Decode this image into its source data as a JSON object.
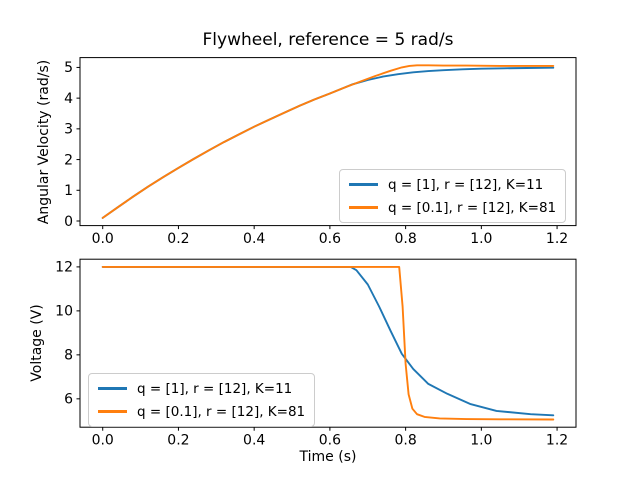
{
  "figure": {
    "background": "#ffffff",
    "text_color": "#000000",
    "axes_color": "#000000",
    "legend_border_color": "#cccccc"
  },
  "chart_data": [
    {
      "type": "line",
      "title": "Flywheel, reference = 5 rad/s",
      "xlabel": "",
      "ylabel": "Angular Velocity (rad/s)",
      "xlim": [
        -0.06,
        1.25
      ],
      "ylim": [
        -0.15,
        5.32
      ],
      "xticks": [
        0.0,
        0.2,
        0.4,
        0.6,
        0.8,
        1.0,
        1.2
      ],
      "xtick_labels": [
        "0.0",
        "0.2",
        "0.4",
        "0.6",
        "0.8",
        "1.0",
        "1.2"
      ],
      "yticks": [
        0,
        1,
        2,
        3,
        4,
        5
      ],
      "ytick_labels": [
        "0",
        "1",
        "2",
        "3",
        "4",
        "5"
      ],
      "grid": false,
      "legend_loc": "lower right",
      "series": [
        {
          "name": "q = [1], r = [12], K=11",
          "color": "#1f77b4",
          "x": [
            0,
            0.04,
            0.08,
            0.12,
            0.16,
            0.2,
            0.24,
            0.28,
            0.32,
            0.36,
            0.4,
            0.44,
            0.48,
            0.52,
            0.56,
            0.6,
            0.64,
            0.66,
            0.7,
            0.74,
            0.78,
            0.82,
            0.86,
            0.9,
            0.95,
            1.0,
            1.06,
            1.12,
            1.19
          ],
          "y": [
            0.1,
            0.45,
            0.79,
            1.12,
            1.43,
            1.73,
            2.02,
            2.3,
            2.57,
            2.82,
            3.07,
            3.3,
            3.53,
            3.75,
            3.96,
            4.15,
            4.35,
            4.45,
            4.59,
            4.7,
            4.78,
            4.84,
            4.88,
            4.91,
            4.94,
            4.96,
            4.97,
            4.98,
            4.99
          ]
        },
        {
          "name": "q = [0.1], r = [12], K=81",
          "color": "#ff7f0e",
          "x": [
            0,
            0.04,
            0.08,
            0.12,
            0.16,
            0.2,
            0.24,
            0.28,
            0.32,
            0.36,
            0.4,
            0.44,
            0.48,
            0.52,
            0.56,
            0.6,
            0.64,
            0.68,
            0.72,
            0.76,
            0.79,
            0.81,
            0.83,
            0.86,
            0.9,
            0.96,
            1.05,
            1.12,
            1.19
          ],
          "y": [
            0.1,
            0.45,
            0.79,
            1.12,
            1.43,
            1.73,
            2.02,
            2.3,
            2.57,
            2.82,
            3.07,
            3.3,
            3.53,
            3.75,
            3.96,
            4.15,
            4.35,
            4.54,
            4.72,
            4.89,
            5.0,
            5.05,
            5.07,
            5.07,
            5.06,
            5.06,
            5.05,
            5.05,
            5.05
          ]
        }
      ]
    },
    {
      "type": "line",
      "title": "",
      "xlabel": "Time (s)",
      "ylabel": "Voltage (V)",
      "xlim": [
        -0.06,
        1.25
      ],
      "ylim": [
        4.71,
        12.35
      ],
      "xticks": [
        0.0,
        0.2,
        0.4,
        0.6,
        0.8,
        1.0,
        1.2
      ],
      "xtick_labels": [
        "0.0",
        "0.2",
        "0.4",
        "0.6",
        "0.8",
        "1.0",
        "1.2"
      ],
      "yticks": [
        6,
        8,
        10,
        12
      ],
      "ytick_labels": [
        "6",
        "8",
        "10",
        "12"
      ],
      "grid": false,
      "legend_loc": "lower left",
      "series": [
        {
          "name": "q = [1], r = [12], K=11",
          "color": "#1f77b4",
          "x": [
            0,
            0.3,
            0.6,
            0.655,
            0.67,
            0.7,
            0.73,
            0.76,
            0.79,
            0.82,
            0.86,
            0.91,
            0.97,
            1.04,
            1.13,
            1.19
          ],
          "y": [
            12,
            12,
            12,
            12,
            11.85,
            11.2,
            10.2,
            9.1,
            8.05,
            7.36,
            6.68,
            6.23,
            5.77,
            5.45,
            5.3,
            5.25
          ]
        },
        {
          "name": "q = [0.1], r = [12], K=81",
          "color": "#ff7f0e",
          "x": [
            0,
            0.4,
            0.783,
            0.792,
            0.8,
            0.808,
            0.818,
            0.83,
            0.85,
            0.89,
            0.96,
            1.05,
            1.19
          ],
          "y": [
            12,
            12,
            12,
            10.2,
            7.6,
            6.2,
            5.55,
            5.3,
            5.18,
            5.11,
            5.08,
            5.07,
            5.06
          ]
        }
      ]
    }
  ]
}
